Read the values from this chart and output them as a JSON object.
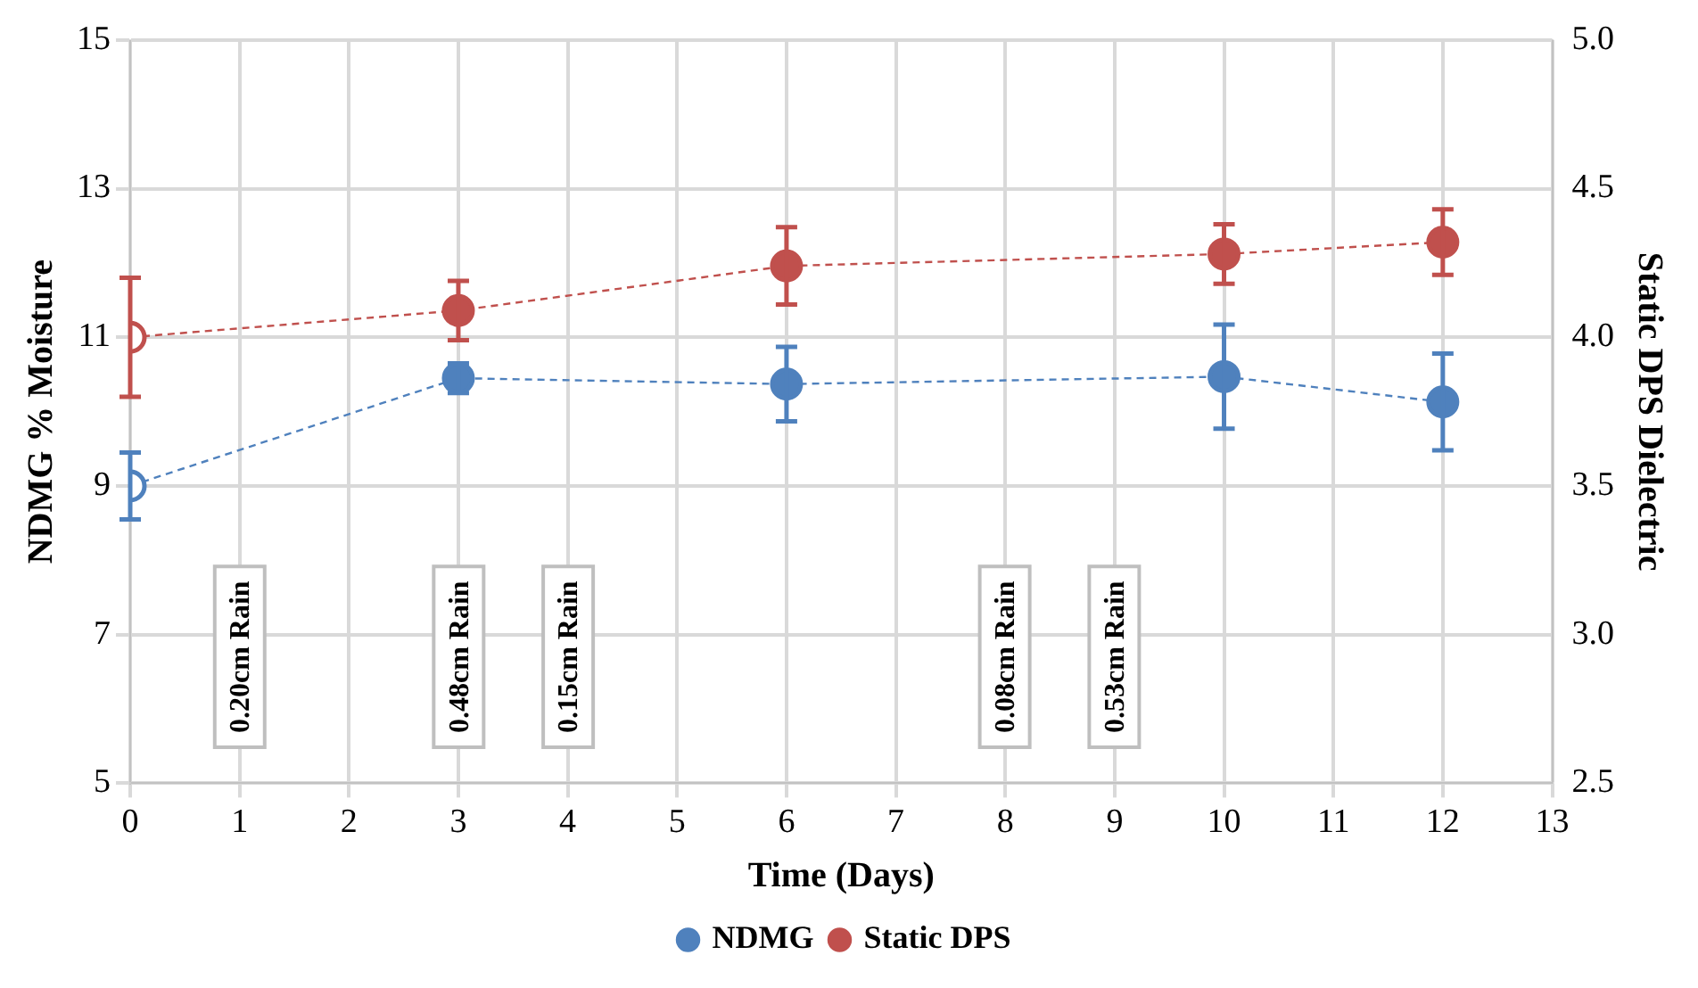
{
  "chart_data": {
    "type": "line",
    "xlabel": "Time (Days)",
    "ylabel": "NDMG % Moisture",
    "y2label": "Static DPS Dielectric",
    "x": [
      0,
      3,
      6,
      10,
      12
    ],
    "series": [
      {
        "name": "NDMG",
        "color": "#4f81bd",
        "values": [
          9.0,
          10.45,
          10.37,
          10.47,
          10.13
        ],
        "errors": [
          0.45,
          0.2,
          0.5,
          0.7,
          0.65
        ]
      },
      {
        "name": "Static DPS",
        "color": "#c0504d",
        "axis": "y2",
        "values": [
          4.0,
          4.09,
          4.24,
          4.28,
          4.32
        ],
        "errors": [
          0.2,
          0.1,
          0.13,
          0.1,
          0.11
        ]
      }
    ],
    "xlim": [
      0,
      13
    ],
    "xticks": [
      0,
      1,
      2,
      3,
      4,
      5,
      6,
      7,
      8,
      9,
      10,
      11,
      12,
      13
    ],
    "ylim": [
      5,
      15
    ],
    "yticks": [
      5,
      7,
      9,
      11,
      13,
      15
    ],
    "y2lim": [
      2.5,
      5.0
    ],
    "y2ticks": [
      {
        "value": 2.5,
        "label": "2.5"
      },
      {
        "value": 3,
        "label": "3.0"
      },
      {
        "value": 3.5,
        "label": "3.5"
      },
      {
        "value": 4,
        "label": "4.0"
      },
      {
        "value": 4.5,
        "label": "4.5"
      },
      {
        "value": 5,
        "label": "5.0"
      }
    ],
    "annotations": [
      "0.20cm Rain",
      "0.48cm Rain",
      "0.15cm Rain",
      "0.08cm Rain",
      "0.53cm Rain"
    ],
    "grid": true,
    "legend": "bottom",
    "marker": "circle",
    "line_style": "dashed"
  }
}
